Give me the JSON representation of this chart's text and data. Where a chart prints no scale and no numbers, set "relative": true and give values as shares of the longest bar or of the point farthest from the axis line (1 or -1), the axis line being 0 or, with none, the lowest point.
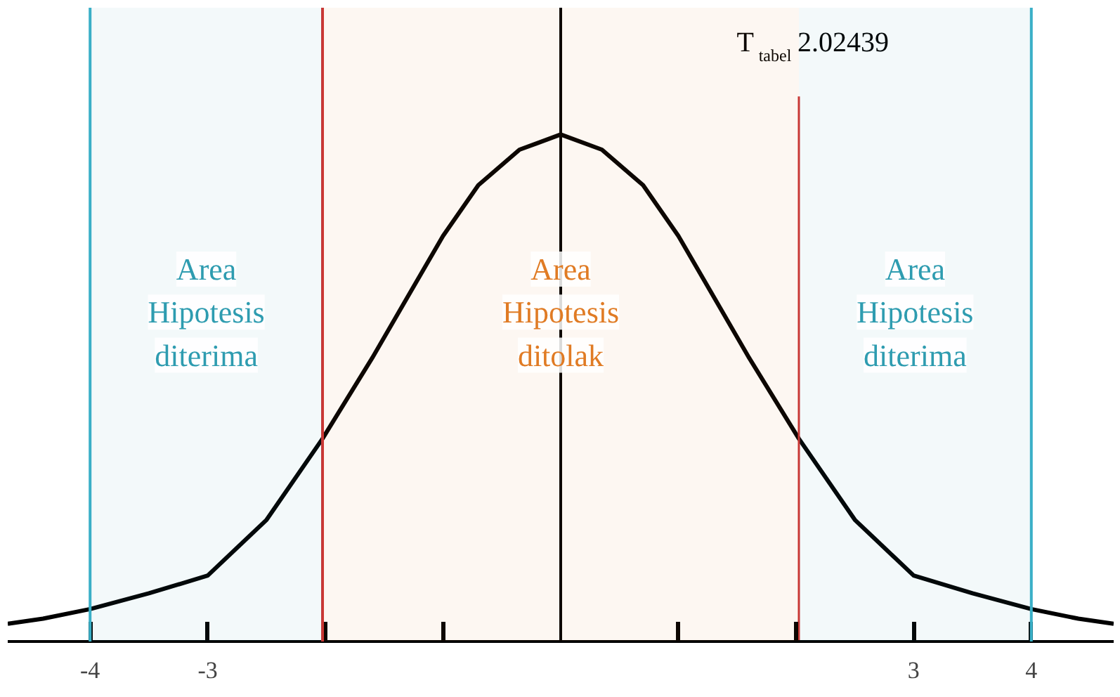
{
  "chart_data": {
    "type": "line",
    "relative": true,
    "x": [
      -4.7,
      -4.4,
      -4,
      -3.5,
      -3,
      -2.5,
      -2.02439,
      -1.6,
      -1.3,
      -1,
      -0.7,
      -0.35,
      0,
      0.35,
      0.7,
      1,
      1.3,
      1.6,
      2.02439,
      2.5,
      3,
      3.5,
      4,
      4.4,
      4.7
    ],
    "series": [
      {
        "color": "#000000",
        "values": [
          0.035,
          0.045,
          0.064,
          0.095,
          0.13,
          0.24,
          0.4,
          0.56,
          0.68,
          0.8,
          0.9,
          0.97,
          1,
          0.97,
          0.9,
          0.8,
          0.68,
          0.56,
          0.4,
          0.24,
          0.13,
          0.095,
          0.064,
          0.045,
          0.035
        ]
      }
    ],
    "xlim": [
      -4.7,
      4.7
    ],
    "xticks": [
      -4,
      -3,
      {
        "value": -2,
        "label": null
      },
      {
        "value": -1,
        "label": null
      },
      {
        "value": 1,
        "label": null
      },
      {
        "value": 2,
        "label": null
      },
      3,
      4
    ],
    "ref_lines": [
      {
        "axis": "x",
        "value": -4,
        "color": "#3ab0c8"
      },
      {
        "axis": "x",
        "value": 4,
        "color": "#3ab0c8"
      },
      {
        "axis": "x",
        "value": -2.02439,
        "color": "#cc3333"
      },
      {
        "axis": "x",
        "value": 2.02439,
        "color": "#cc3333",
        "label": "T$_{tabel}$ 2.02439"
      },
      {
        "axis": "x",
        "value": 0,
        "color": "#000000"
      }
    ],
    "bands": [
      {
        "axis": "x",
        "from": -4,
        "to": -2.02439,
        "label": "Area Hipotesis diterima",
        "color": "#2e9cb0"
      },
      {
        "axis": "x",
        "from": -2.02439,
        "to": 2.02439,
        "label": "Area Hipotesis ditolak",
        "color": "#e07b24"
      },
      {
        "axis": "x",
        "from": 2.02439,
        "to": 4,
        "label": "Area Hipotesis diterima",
        "color": "#2e9cb0"
      }
    ],
    "grid": false,
    "marker": "none",
    "line_style": "solid"
  }
}
